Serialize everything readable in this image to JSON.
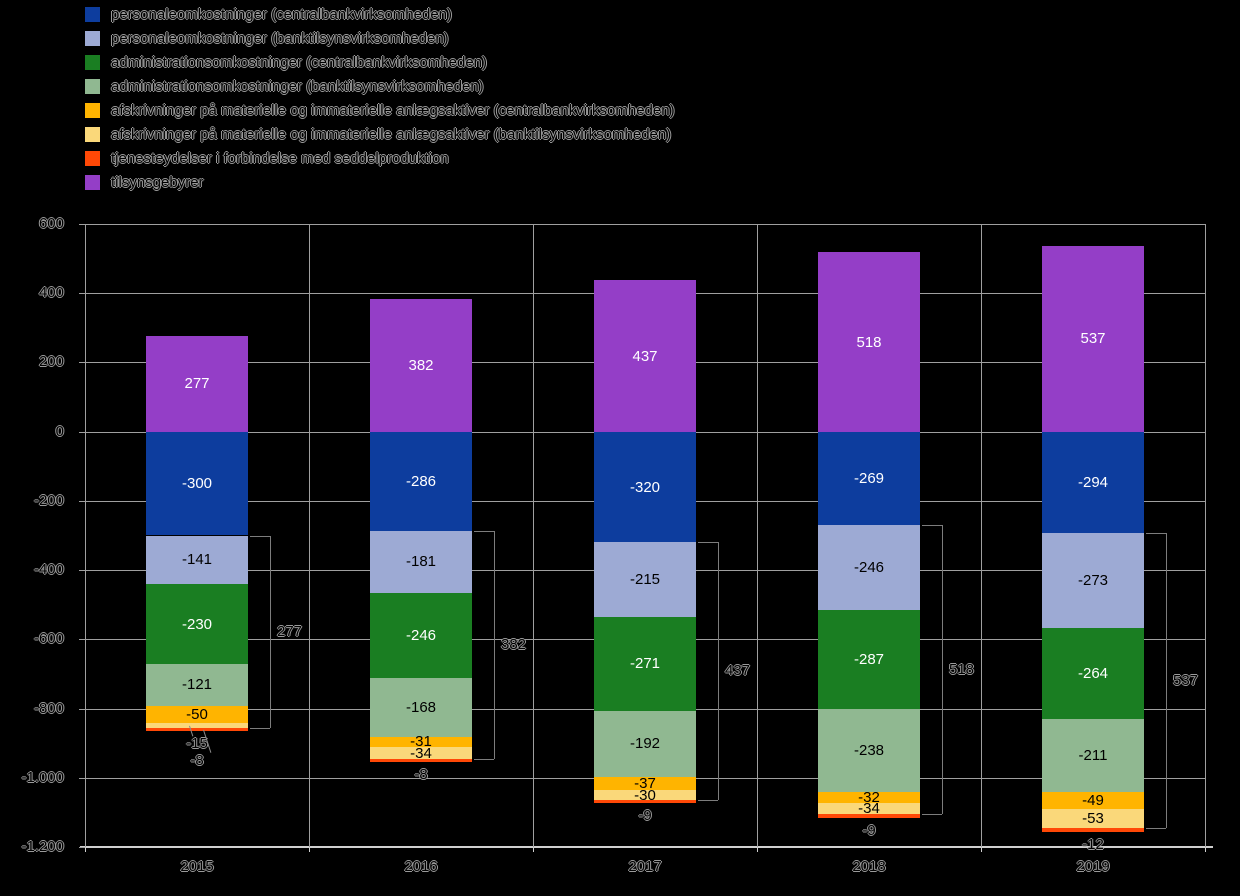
{
  "chart_data": {
    "type": "bar",
    "subtype": "stacked-diverging",
    "title": "",
    "categories": [
      "2015",
      "2016",
      "2017",
      "2018",
      "2019"
    ],
    "series": [
      {
        "name": "personaleomkostninger (centralbankvirksomheden)",
        "color": "#0d3d9e",
        "label_color": "#ffffff",
        "values": [
          -300,
          -286,
          -320,
          -269,
          -294
        ]
      },
      {
        "name": "personaleomkostninger (banktilsynsvirksomheden)",
        "color": "#9daad4",
        "label_color": "#000000",
        "values": [
          -141,
          -181,
          -215,
          -246,
          -273
        ]
      },
      {
        "name": "administrationsomkostninger (centralbankvirksomheden)",
        "color": "#1a7e22",
        "label_color": "#ffffff",
        "values": [
          -230,
          -246,
          -271,
          -287,
          -264
        ]
      },
      {
        "name": "administrationsomkostninger (banktilsynsvirksomheden)",
        "color": "#90b891",
        "label_color": "#000000",
        "values": [
          -121,
          -168,
          -192,
          -238,
          -211
        ]
      },
      {
        "name": "afskrivninger på materielle og immaterielle anlægsaktiver (centralbankvirksomheden)",
        "color": "#ffb400",
        "label_color": "#000000",
        "values": [
          -50,
          -31,
          -37,
          -32,
          -49
        ]
      },
      {
        "name": "afskrivninger på materielle og immaterielle anlægsaktiver (banktilsynsvirksomheden)",
        "color": "#fad87a",
        "label_color": "#000000",
        "values": [
          -15,
          -34,
          -30,
          -34,
          -53
        ]
      },
      {
        "name": "tjenesteydelser i forbindelse med seddelproduktion",
        "color": "#ff4806",
        "label_color": "#000000",
        "values": [
          -8,
          -8,
          -9,
          -9,
          -12
        ]
      },
      {
        "name": "tilsynsgebyrer",
        "color": "#943ec7",
        "label_color": "#ffffff",
        "values": [
          277,
          382,
          437,
          518,
          537
        ]
      }
    ],
    "brackets": {
      "description": "right-side bracket spanning the banking-supervision cost segments of each bar",
      "series_indices": [
        1,
        3,
        5
      ],
      "totals": [
        "277",
        "382",
        "437",
        "518",
        "537"
      ]
    },
    "xlabel": "",
    "ylabel": "",
    "ylim": [
      600,
      -1200
    ],
    "ytick_labels": [
      "600",
      "400",
      "200",
      "0",
      "-200",
      "-400",
      "-600",
      "-800",
      "-1.000",
      "-1.200"
    ],
    "grid": true,
    "legend_position": "top-left",
    "background": "#000000",
    "grid_color": "#9f9f9f",
    "axis_color": "#cfcfcf",
    "bracket_color": "#7d7d7d"
  }
}
